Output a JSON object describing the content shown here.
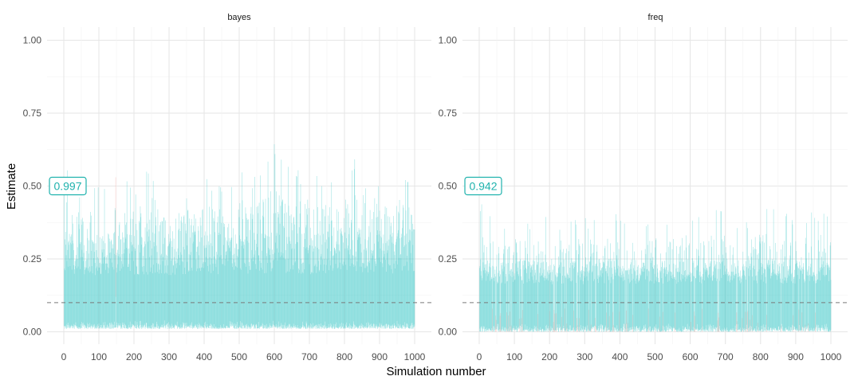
{
  "chart_data": {
    "type": "line",
    "xlabel": "Simulation number",
    "ylabel": "Estimate",
    "xlim": [
      0,
      1000
    ],
    "ylim": [
      0,
      1.0
    ],
    "x_ticks": [
      "0",
      "100",
      "200",
      "300",
      "400",
      "500",
      "600",
      "700",
      "800",
      "900",
      "1000"
    ],
    "y_ticks": [
      "0.00",
      "0.25",
      "0.50",
      "0.75",
      "1.00"
    ],
    "reference_line": 0.1,
    "grid": true,
    "colors": {
      "covered": "#3fc7c9",
      "not_covered": "#f4a6a0",
      "label": "#1fb2ad",
      "reference": "#7a7a7a"
    },
    "panels": [
      {
        "strip": "bayes",
        "coverage_label": "0.997",
        "label_y": 0.5,
        "envelope": {
          "x": [
            0,
            50,
            100,
            150,
            200,
            250,
            300,
            350,
            400,
            450,
            500,
            550,
            600,
            650,
            700,
            750,
            800,
            850,
            900,
            950,
            1000
          ],
          "upper_typical": [
            0.35,
            0.34,
            0.33,
            0.35,
            0.33,
            0.34,
            0.33,
            0.34,
            0.35,
            0.34,
            0.35,
            0.34,
            0.36,
            0.35,
            0.34,
            0.35,
            0.35,
            0.36,
            0.34,
            0.35,
            0.36
          ],
          "upper_peak": [
            0.59,
            0.48,
            0.53,
            0.59,
            0.5,
            0.59,
            0.52,
            0.5,
            0.53,
            0.5,
            0.57,
            0.53,
            0.65,
            0.55,
            0.57,
            0.53,
            0.55,
            0.68,
            0.55,
            0.57,
            0.52
          ],
          "lower": [
            0.01,
            0.01,
            0.01,
            0.01,
            0.01,
            0.01,
            0.01,
            0.01,
            0.01,
            0.01,
            0.01,
            0.01,
            0.01,
            0.01,
            0.01,
            0.01,
            0.01,
            0.01,
            0.01,
            0.01,
            0.01
          ]
        }
      },
      {
        "strip": "freq",
        "coverage_label": "0.942",
        "label_y": 0.5,
        "envelope": {
          "x": [
            0,
            50,
            100,
            150,
            200,
            250,
            300,
            350,
            400,
            450,
            500,
            550,
            600,
            650,
            700,
            750,
            800,
            850,
            900,
            950,
            1000
          ],
          "upper_typical": [
            0.25,
            0.24,
            0.24,
            0.25,
            0.24,
            0.25,
            0.24,
            0.25,
            0.25,
            0.24,
            0.25,
            0.24,
            0.25,
            0.25,
            0.24,
            0.25,
            0.25,
            0.25,
            0.24,
            0.25,
            0.25
          ],
          "upper_peak": [
            0.47,
            0.38,
            0.4,
            0.38,
            0.4,
            0.38,
            0.4,
            0.38,
            0.41,
            0.38,
            0.42,
            0.4,
            0.42,
            0.42,
            0.42,
            0.38,
            0.42,
            0.45,
            0.4,
            0.42,
            0.42
          ],
          "lower": [
            0.0,
            0.0,
            0.0,
            0.0,
            0.0,
            0.0,
            0.0,
            0.0,
            0.0,
            0.0,
            0.0,
            0.0,
            0.0,
            0.0,
            0.0,
            0.0,
            0.0,
            0.0,
            0.0,
            0.0,
            0.0
          ]
        }
      }
    ]
  }
}
